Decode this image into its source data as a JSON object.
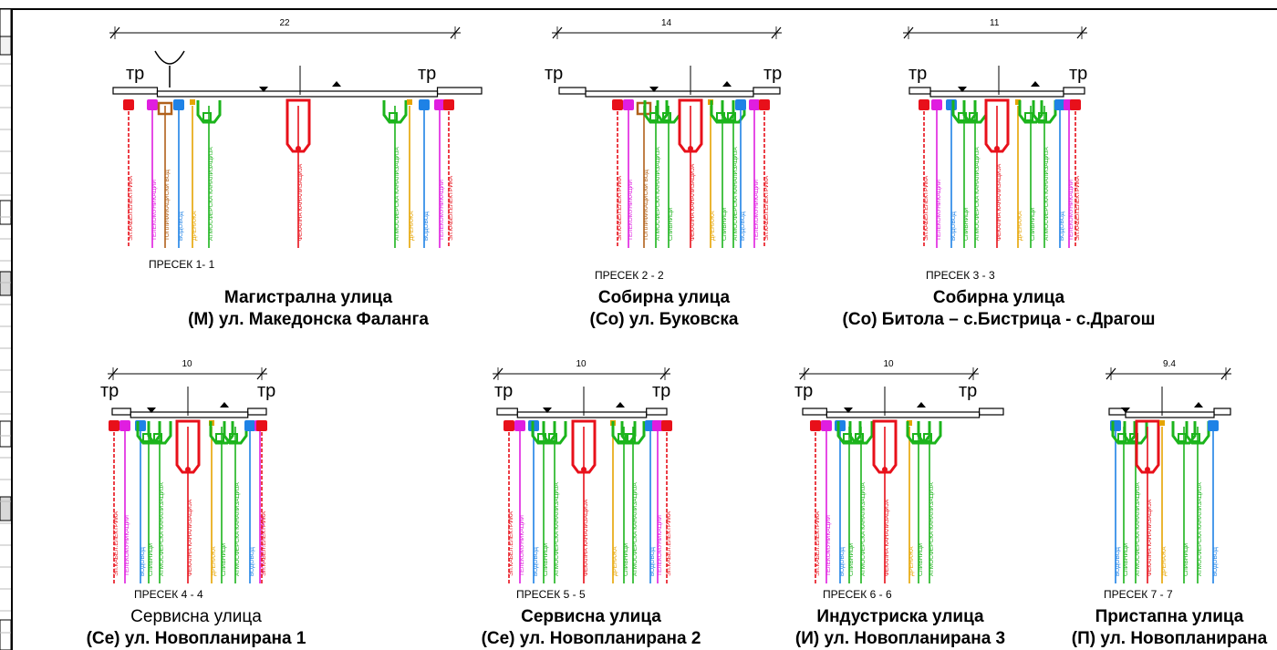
{
  "sections": [
    {
      "id": "1-1",
      "dimension": "22",
      "tr_left": "тр",
      "tr_right": "тр",
      "label": "ПРЕСЕК 1- 1",
      "title_line1": "Магистрална улица",
      "title_line2": "(М) ул. Македонска Фаланга",
      "utilities": [
        "ЭЛ.КАБЕЛ.ЕЛЕКТРИКА",
        "ТЕЛЕКОМУНИКАЦИИ",
        "ТОПЛИФИКАЦИСКИ ВОД",
        "ВОДОВОД",
        "ДРЕНАЖА",
        "АТМОСФЕРСКА КАНАЛИЗАЦИЈА",
        "ФЕКАЛНА КАНАЛИЗАЦИЈА",
        "АТМОСФЕРСКА КАНАЛИЗАЦИЈА",
        "ДРЕНАЖА",
        "ВОДОВОД",
        "ТЕЛЕКОМУНИКАЦИИ",
        "ЭЛ.КАБЕЛ.ЕЛЕКТРИКА"
      ]
    },
    {
      "id": "2-2",
      "dimension": "14",
      "tr_left": "тр",
      "tr_right": "тр",
      "label": "ПРЕСЕК 2 - 2",
      "title_line1": "Собирна улица",
      "title_line2": "(Со) ул. Буковска",
      "utilities": [
        "ЭЛ.КАБЕЛ.ЕЛЕКТРИКА",
        "ТЕЛЕКОМУНИКАЦИИ",
        "ТОПЛИФИКАЦИСКИ ВОД",
        "АТМОСФЕРСКА КАНАЛИЗАЦИЈА",
        "СЛИВНИЦИ",
        "ФЕКАЛНА КАНАЛИЗАЦИЈА",
        "ДРЕНАЖА",
        "СЛИВНИЦИ",
        "АТМОСФЕРСКА КАНАЛИЗАЦИЈА",
        "ВОДОВОД",
        "ТЕЛЕКОМУНИКАЦИИ",
        "ЭЛ.КАБЕЛ.ЕЛЕКТРИКА"
      ]
    },
    {
      "id": "3-3",
      "dimension": "11",
      "tr_left": "тр",
      "tr_right": "тр",
      "label": "ПРЕСЕК 3 - 3",
      "title_line1": "Собирна улица",
      "title_line2": "(Со) Битола – с.Бистрица - с.Драгош",
      "utilities": [
        "ЭЛ.КАБЕЛ.ЕЛЕКТРИКА",
        "ТЕЛЕКОМУНИКАЦИИ",
        "ВОДОВОД",
        "СЛИВНИЦИ",
        "АТМОСФЕРСКА КАНАЛИЗАЦИЈА",
        "ФЕКАЛНА КАНАЛИЗАЦИЈА",
        "ДРЕНАЖА",
        "СЛИВНИЦИ",
        "АТМОСФЕРСКА КАНАЛИЗАЦИЈА",
        "ВОДОВОД",
        "ТЕЛЕКОМУНИКАЦИИ",
        "ЭЛ.КАБЕЛ.ЕЛЕКТРИКА"
      ]
    },
    {
      "id": "4-4",
      "dimension": "10",
      "tr_left": "тр",
      "tr_right": "тр",
      "label": "ПРЕСЕК 4 - 4",
      "title_line1": "Сервисна улица",
      "title_line2": "(Се) ул. Новопланирана 1",
      "utilities": [
        "ЭЛ.КАБЕЛ.ЕЛЕКТРИКА",
        "ТЕЛЕКОМУНИКАЦИИ",
        "ВОДОВОД",
        "СЛИВНИЦИ",
        "АТМОСФЕРСКА КАНАЛИЗАЦИЈА",
        "ФЕКАЛНА КАНАЛИЗАЦИЈА",
        "ДРЕНАЖА",
        "СЛИВНИЦИ",
        "АТМОСФЕРСКА КАНАЛИЗАЦИЈА",
        "ВОДОВОД",
        "ТЕЛЕКОМУНИКАЦИИ",
        "ЭЛ.КАБЕЛ.ЕЛЕКТРИКА"
      ]
    },
    {
      "id": "5-5",
      "dimension": "10",
      "tr_left": "тр",
      "tr_right": "тр",
      "label": "ПРЕСЕК 5 - 5",
      "title_line1": "Сервисна улица",
      "title_line2": "(Се) ул. Новопланирана 2",
      "utilities": [
        "ЭЛ.КАБЕЛ.ЕЛЕКТРИКА",
        "ТЕЛЕКОМУНИКАЦИИ",
        "ВОДОВОД",
        "СЛИВНИЦИ",
        "АТМОСФЕРСКА КАНАЛИЗАЦИЈА",
        "ФЕКАЛНА КАНАЛИЗАЦИЈА",
        "ДРЕНАЖА",
        "СЛИВНИЦИ",
        "АТМОСФЕРСКА КАНАЛИЗАЦИЈА",
        "ВОДОВОД",
        "ТЕЛЕКОМУНИКАЦИИ",
        "ЭЛ.КАБЕЛ.ЕЛЕКТРИКА"
      ]
    },
    {
      "id": "6-6",
      "dimension": "10",
      "tr_left": "тр",
      "tr_right": "тр",
      "label": "ПРЕСЕК 6 - 6",
      "title_line1": "Индустриска улица",
      "title_line2": "(И) ул. Новопланирана 3",
      "utilities": [
        "ЭЛ.КАБЕЛ.ЕЛЕКТРИКА",
        "ТЕЛЕКОМУНИКАЦИИ",
        "ВОДОВОД",
        "СЛИВНИЦИ",
        "АТМОСФЕРСКА КАНАЛИЗАЦИЈА",
        "ФЕКАЛНА КАНАЛИЗАЦИЈА",
        "ДРЕНАЖА",
        "СЛИВНИЦИ",
        "АТМОСФЕРСКА КАНАЛИЗАЦИЈА"
      ]
    },
    {
      "id": "7-7",
      "dimension": "9.4",
      "label": "ПРЕСЕК 7 - 7",
      "title_line1": "Пристапна улица",
      "title_line2": "(П) ул. Новопланирана",
      "utilities": [
        "ВОДОВОД",
        "СЛИВНИЦИ",
        "АТМОСФЕРСКА КАНАЛИЗАЦИЈА",
        "ФЕКАЛНА КАНАЛИЗАЦИЈА",
        "ДРЕНАЖА",
        "СЛИВНИЦИ",
        "АТМОСФЕРСКА КАНАЛИЗАЦИЈА",
        "ВОДОВОД"
      ]
    }
  ],
  "colors": {
    "electric": "#e8101a",
    "telecom": "#e01ee0",
    "heating": "#b0601a",
    "water": "#1e82e6",
    "storm": "#1cb41c",
    "sewer": "#e8101a",
    "drainage": "#e6a400"
  }
}
